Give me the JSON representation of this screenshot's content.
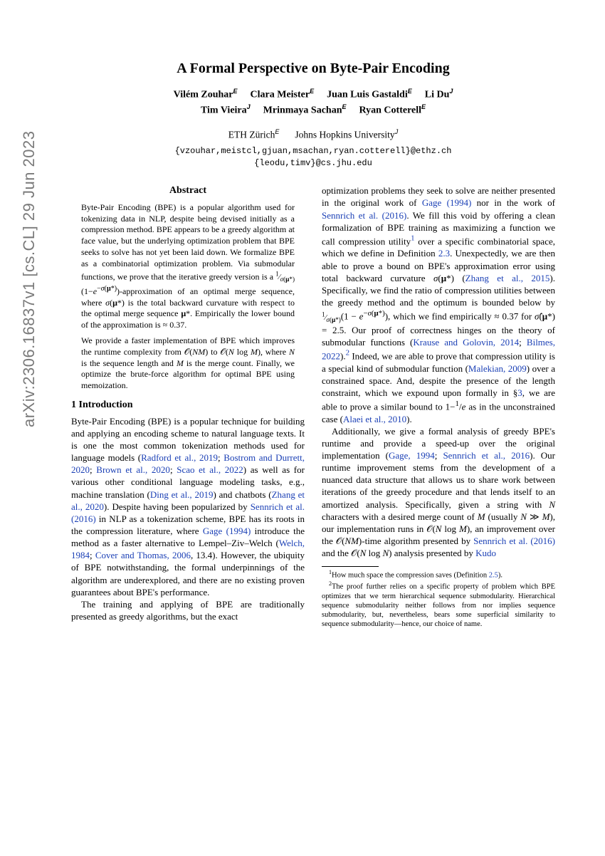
{
  "arxiv_stamp": "arXiv:2306.16837v1  [cs.CL]  29 Jun 2023",
  "title": "A Formal Perspective on Byte-Pair Encoding",
  "authors_line1_html": "Vilém Zouhar<span class='sup'>E</span><span class='gap'></span>Clara Meister<span class='sup'>E</span><span class='gap'></span>Juan Luis Gastaldi<span class='sup'>E</span><span class='gap'></span>Li Du<span class='sup'>J</span>",
  "authors_line2_html": "Tim Vieira<span class='sup'>J</span><span class='gap'></span>Mrinmaya Sachan<span class='sup'>E</span><span class='gap'></span>Ryan Cotterell<span class='sup'>E</span>",
  "affil_html": "ETH Zürich<span class='sup'>E</span><span class='gap'></span>Johns Hopkins University<span class='sup'>J</span>",
  "email1": "{vzouhar,meistcl,gjuan,msachan,ryan.cotterell}@ethz.ch",
  "email2": "{leodu,timv}@cs.jhu.edu",
  "abstract_head": "Abstract",
  "abstract_p1_html": "Byte-Pair Encoding (BPE) is a popular algorithm used for tokenizing data in NLP, despite being devised initially as a compression method. BPE appears to be a greedy algorithm at face value, but the underlying optimization problem that BPE seeks to solve has not yet been laid down. We formalize BPE as a combinatorial optimization problem. Via submodular functions, we prove that the iterative greedy version is a <span style='font-size:11px'><sup>1</sup>&#8260;<sub><i>σ</i>(<b>μ</b>*)</sub></span>(1−<i>e</i><sup>−<i>σ</i>(<b>μ</b>*)</sup>)-approximation of an optimal merge sequence, where <i>σ</i>(<b>μ</b>*) is the total backward curvature with respect to the optimal merge sequence <b>μ</b>*. Empirically the lower bound of the approximation is ≈ 0.37.",
  "abstract_p2_html": "We provide a faster implementation of BPE which improves the runtime complexity from 𝒪(<i>NM</i>) to 𝒪(<i>N</i> log <i>M</i>), where <i>N</i> is the sequence length and <i>M</i> is the merge count. Finally, we optimize the brute-force algorithm for optimal BPE using memoization.",
  "section1_head": "1   Introduction",
  "intro_p1_html": "Byte-Pair Encoding (BPE) is a popular technique for building and applying an encoding scheme to natural language texts. It is one the most common tokenization methods used for language models (<a class='cite'>Radford et al., 2019</a>; <a class='cite'>Bostrom and Durrett, 2020</a>; <a class='cite'>Brown et al., 2020</a>; <a class='cite'>Scao et al., 2022</a>) as well as for various other conditional language modeling tasks, e.g., machine translation (<a class='cite'>Ding et al., 2019</a>) and chatbots (<a class='cite'>Zhang et al., 2020</a>). Despite having been popularized by <a class='cite'>Sennrich et al. (2016)</a> in NLP as a tokenization scheme, BPE has its roots in the compression literature, where <a class='cite'>Gage (1994)</a> introduce the method as a faster alternative to Lempel–Ziv–Welch (<a class='cite'>Welch, 1984</a>; <a class='cite'>Cover and Thomas, 2006</a>, 13.4). However, the ubiquity of BPE notwithstanding, the formal underpinnings of the algorithm are underexplored, and there are no existing proven guarantees about BPE's performance.",
  "intro_p2_html": "The training and applying of BPE are traditionally presented as greedy algorithms, but the exact",
  "col2_p1_html": "optimization problems they seek to solve are neither presented in the original work of <a class='cite'>Gage (1994)</a> nor in the work of <a class='cite'>Sennrich et al. (2016)</a>. We fill this void by offering a clean formalization of BPE training as maximizing a function we call compression utility<a class='cite'><sup>1</sup></a> over a specific combinatorial space, which we define in Definition <a class='cite'>2.3</a>. Unexpectedly, we are then able to prove a bound on BPE's approximation error using total backward curvature <i>σ</i>(<b>μ</b>*) (<a class='cite'>Zhang et al., 2015</a>). Specifically, we find the ratio of compression utilities between the greedy method and the optimum is bounded below by <span style='font-size:11px'><sup>1</sup>&#8260;<sub><i>σ</i>(<b>μ</b>*)</sub></span>(1 − <i>e</i><sup>−<i>σ</i>(<b>μ</b>*)</sup>), which we find empirically ≈ 0.37 for <i>σ̂</i>(<b>μ</b>*) = 2.5. Our proof of correctness hinges on the theory of submodular functions (<a class='cite'>Krause and Golovin, 2014</a>; <a class='cite'>Bilmes, 2022</a>).<a class='cite'><sup>2</sup></a> Indeed, we are able to prove that compression utility is a special kind of submodular function (<a class='cite'>Malekian, 2009</a>) over a constrained space. And, despite the presence of the length constraint, which we expound upon formally in §<a class='cite'>3</a>, we are able to prove a similar bound to 1−<sup>1</sup>/<i>e</i> as in the unconstrained case (<a class='cite'>Alaei et al., 2010</a>).",
  "col2_p2_html": "Additionally, we give a formal analysis of greedy BPE's runtime and provide a speed-up over the original implementation (<a class='cite'>Gage, 1994</a>; <a class='cite'>Sennrich et al., 2016</a>). Our runtime improvement stems from the development of a nuanced data structure that allows us to share work between iterations of the greedy procedure and that lends itself to an amortized analysis. Specifically, given a string with <i>N</i> characters with a desired merge count of <i>M</i> (usually <i>N</i> ≫ <i>M</i>), our implementation runs in 𝒪(<i>N</i> log <i>M</i>), an improvement over the 𝒪(<i>NM</i>)-time algorithm presented by <a class='cite'>Sennrich et al. (2016)</a> and the 𝒪(<i>N</i> log <i>N</i>) analysis presented by <a class='cite'>Kudo</a>",
  "fn1_html": "<sup>1</sup>How much space the compression saves (Definition <a class='cite'>2.5</a>).",
  "fn2_html": "<sup>2</sup>The proof further relies on a specific property of problem which BPE optimizes that we term hierarchical sequence submodularity. Hierarchical sequence submodularity neither follows from nor implies sequence submodularity, but, nevertheless, bears some superficial similarity to sequence submodularity—hence, our choice of name."
}
